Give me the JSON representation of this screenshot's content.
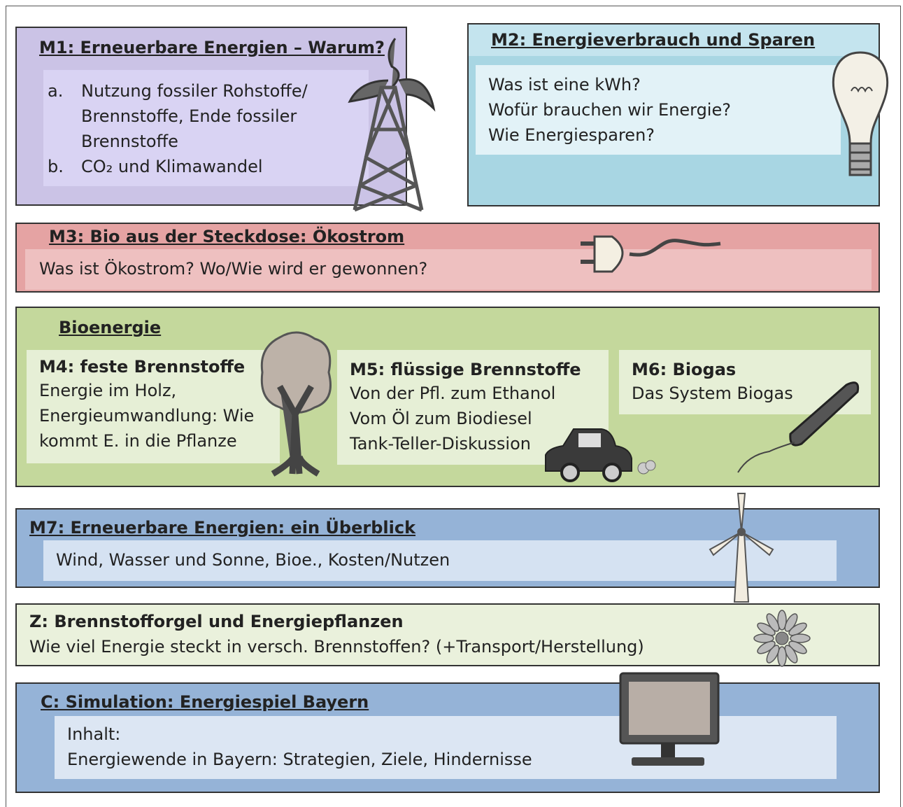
{
  "m1": {
    "title": "M1: Erneuerbare Energien – Warum?",
    "items": [
      {
        "marker": "a.",
        "lines": [
          "Nutzung fossiler Rohstoffe/",
          "Brennstoffe, Ende fossiler",
          "Brennstoffe"
        ]
      },
      {
        "marker": "b.",
        "lines": [
          "CO₂ und Klimawandel"
        ]
      }
    ]
  },
  "m2": {
    "title": "M2: Energieverbrauch und Sparen",
    "lines": [
      "Was ist eine kWh?",
      "Wofür brauchen wir Energie?",
      "Wie Energiesparen?"
    ]
  },
  "m3": {
    "title": "M3: Bio aus der Steckdose: Ökostrom",
    "lines": [
      "Was ist Ökostrom? Wo/Wie wird er gewonnen?"
    ]
  },
  "bioenergie": {
    "title": "Bioenergie",
    "modules": [
      {
        "title": "M4: feste Brennstoffe",
        "lines": [
          "Energie im Holz,",
          "Energieumwandlung: Wie",
          "kommt E. in die Pflanze"
        ]
      },
      {
        "title": "M5: flüssige Brennstoffe",
        "lines": [
          "Von der Pfl. zum Ethanol",
          "Vom Öl zum Biodiesel",
          "Tank-Teller-Diskussion"
        ]
      },
      {
        "title": "M6: Biogas",
        "lines": [
          "Das System Biogas"
        ]
      }
    ]
  },
  "m7": {
    "title": "M7: Erneuerbare Energien: ein Überblick",
    "lines": [
      "Wind, Wasser und Sonne, Bioe., Kosten/Nutzen"
    ]
  },
  "z": {
    "title": "Z: Brennstofforgel und Energiepflanzen",
    "lines": [
      "Wie viel Energie steckt in versch. Brennstoffen? (+Transport/Herstellung)"
    ]
  },
  "c": {
    "title": "C: Simulation: Energiespiel Bayern",
    "lines": [
      "Inhalt:",
      "Energiewende in Bayern: Strategien, Ziele, Hindernisse"
    ]
  }
}
